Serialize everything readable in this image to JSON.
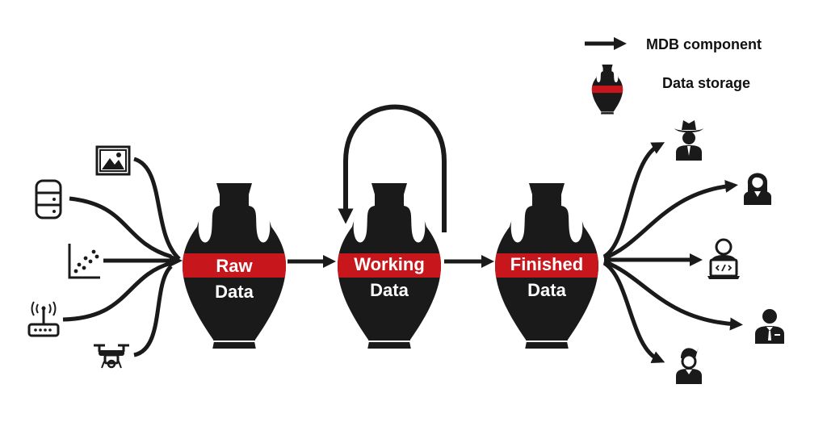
{
  "legend": {
    "component_label": "MDB component",
    "storage_label": "Data storage"
  },
  "stages": [
    {
      "line1": "Raw",
      "line2": "Data"
    },
    {
      "line1": "Working",
      "line2": "Data"
    },
    {
      "line1": "Finished",
      "line2": "Data"
    }
  ],
  "sources": [
    "image-icon",
    "database-icon",
    "scatter-plot-icon",
    "sensor-router-icon",
    "drone-icon"
  ],
  "users": [
    "cowboy-hat-user-icon",
    "woman-user-icon",
    "developer-user-icon",
    "businessman-user-icon",
    "young-man-user-icon"
  ],
  "colors": {
    "ink": "#1a1a1a",
    "accent": "#c8161d",
    "background": "#ffffff"
  }
}
